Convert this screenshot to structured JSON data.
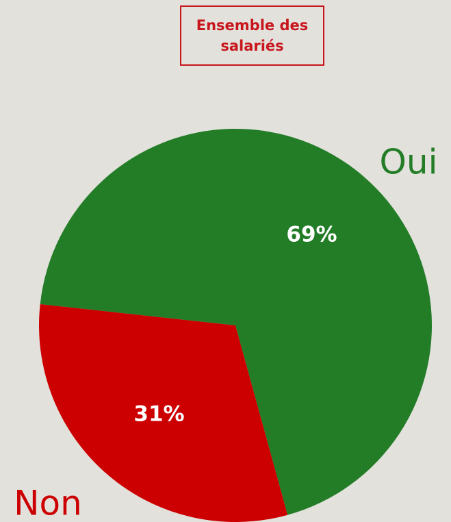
{
  "chart_data": {
    "type": "pie",
    "title": "Ensemble des salariés",
    "categories": [
      "Oui",
      "Non"
    ],
    "values": [
      69,
      31
    ],
    "value_labels": [
      "69%",
      "31%"
    ],
    "colors": [
      "#237d27",
      "#cc0000"
    ]
  }
}
